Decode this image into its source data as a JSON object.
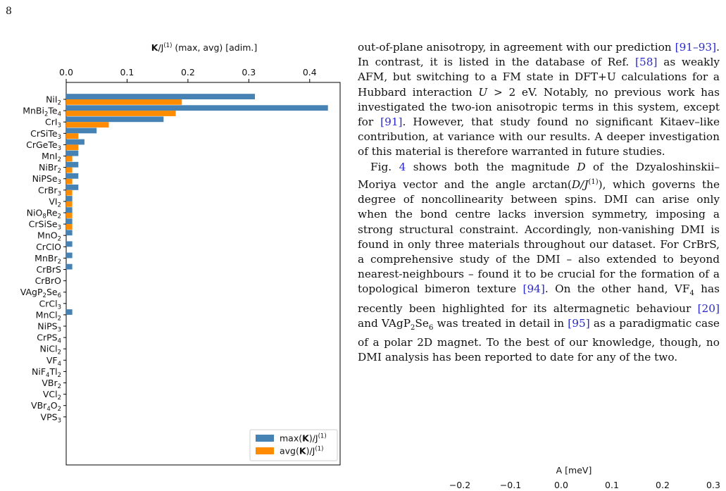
{
  "page": {
    "number": "8"
  },
  "chart_data": {
    "type": "bar",
    "orientation": "horizontal",
    "title": "K/J(1) (max, avg) [adim.]",
    "title_parts": {
      "bold": "K",
      "main": "/J",
      "sup": "(1)",
      "rest": " (max, avg) [adim.]"
    },
    "xlim": [
      0,
      0.45
    ],
    "xticks": [
      {
        "value": 0.0,
        "label": "0.0"
      },
      {
        "value": 0.1,
        "label": "0.1"
      },
      {
        "value": 0.2,
        "label": "0.2"
      },
      {
        "value": 0.3,
        "label": "0.3"
      },
      {
        "value": 0.4,
        "label": "0.4"
      }
    ],
    "grid": false,
    "legend_position": "bottom-right",
    "categories": [
      {
        "label": "NiI2",
        "parts": [
          [
            "NiI",
            ""
          ],
          [
            "2",
            "sub"
          ]
        ]
      },
      {
        "label": "MnBi2Te4",
        "parts": [
          [
            "MnBi",
            ""
          ],
          [
            "2",
            "sub"
          ],
          [
            "Te",
            ""
          ],
          [
            "4",
            "sub"
          ]
        ]
      },
      {
        "label": "CrI3",
        "parts": [
          [
            "CrI",
            ""
          ],
          [
            "3",
            "sub"
          ]
        ]
      },
      {
        "label": "CrSiTe3",
        "parts": [
          [
            "CrSiTe",
            ""
          ],
          [
            "3",
            "sub"
          ]
        ]
      },
      {
        "label": "CrGeTe3",
        "parts": [
          [
            "CrGeTe",
            ""
          ],
          [
            "3",
            "sub"
          ]
        ]
      },
      {
        "label": "MnI2",
        "parts": [
          [
            "MnI",
            ""
          ],
          [
            "2",
            "sub"
          ]
        ]
      },
      {
        "label": "NiBr2",
        "parts": [
          [
            "NiBr",
            ""
          ],
          [
            "2",
            "sub"
          ]
        ]
      },
      {
        "label": "NiPSe3",
        "parts": [
          [
            "NiPSe",
            ""
          ],
          [
            "3",
            "sub"
          ]
        ]
      },
      {
        "label": "CrBr3",
        "parts": [
          [
            "CrBr",
            ""
          ],
          [
            "3",
            "sub"
          ]
        ]
      },
      {
        "label": "VI2",
        "parts": [
          [
            "VI",
            ""
          ],
          [
            "2",
            "sub"
          ]
        ]
      },
      {
        "label": "NiO8Re2",
        "parts": [
          [
            "NiO",
            ""
          ],
          [
            "8",
            "sub"
          ],
          [
            "Re",
            ""
          ],
          [
            "2",
            "sub"
          ]
        ]
      },
      {
        "label": "CrSiSe3",
        "parts": [
          [
            "CrSiSe",
            ""
          ],
          [
            "3",
            "sub"
          ]
        ]
      },
      {
        "label": "MnO2",
        "parts": [
          [
            "MnO",
            ""
          ],
          [
            "2",
            "sub"
          ]
        ]
      },
      {
        "label": "CrClO",
        "parts": [
          [
            "CrClO",
            ""
          ]
        ]
      },
      {
        "label": "MnBr2",
        "parts": [
          [
            "MnBr",
            ""
          ],
          [
            "2",
            "sub"
          ]
        ]
      },
      {
        "label": "CrBrS",
        "parts": [
          [
            "CrBrS",
            ""
          ]
        ]
      },
      {
        "label": "CrBrO",
        "parts": [
          [
            "CrBrO",
            ""
          ]
        ]
      },
      {
        "label": "VAgP2Se6",
        "parts": [
          [
            "VAgP",
            ""
          ],
          [
            "2",
            "sub"
          ],
          [
            "Se",
            ""
          ],
          [
            "6",
            "sub"
          ]
        ]
      },
      {
        "label": "CrCl3",
        "parts": [
          [
            "CrCl",
            ""
          ],
          [
            "3",
            "sub"
          ]
        ]
      },
      {
        "label": "MnCl2",
        "parts": [
          [
            "MnCl",
            ""
          ],
          [
            "2",
            "sub"
          ]
        ]
      },
      {
        "label": "NiPS3",
        "parts": [
          [
            "NiPS",
            ""
          ],
          [
            "3",
            "sub"
          ]
        ]
      },
      {
        "label": "CrPS4",
        "parts": [
          [
            "CrPS",
            ""
          ],
          [
            "4",
            "sub"
          ]
        ]
      },
      {
        "label": "NiCl2",
        "parts": [
          [
            "NiCl",
            ""
          ],
          [
            "2",
            "sub"
          ]
        ]
      },
      {
        "label": "VF4",
        "parts": [
          [
            "VF",
            ""
          ],
          [
            "4",
            "sub"
          ]
        ]
      },
      {
        "label": "NiF4Tl2",
        "parts": [
          [
            "NiF",
            ""
          ],
          [
            "4",
            "sub"
          ],
          [
            "Tl",
            ""
          ],
          [
            "2",
            "sub"
          ]
        ]
      },
      {
        "label": "VBr2",
        "parts": [
          [
            "VBr",
            ""
          ],
          [
            "2",
            "sub"
          ]
        ]
      },
      {
        "label": "VCl2",
        "parts": [
          [
            "VCl",
            ""
          ],
          [
            "2",
            "sub"
          ]
        ]
      },
      {
        "label": "VBr4O2",
        "parts": [
          [
            "VBr",
            ""
          ],
          [
            "4",
            "sub"
          ],
          [
            "O",
            ""
          ],
          [
            "2",
            "sub"
          ]
        ]
      },
      {
        "label": "VPS3",
        "parts": [
          [
            "VPS",
            ""
          ],
          [
            "3",
            "sub"
          ]
        ]
      }
    ],
    "series": [
      {
        "name": "max(K)/J(1)",
        "legend_parts": {
          "pre": "max(",
          "bold": "K",
          "post": ")/J",
          "sup": "(1)"
        },
        "color": "#4682b4",
        "values": [
          0.31,
          0.43,
          0.16,
          0.05,
          0.03,
          0.02,
          0.02,
          0.02,
          0.02,
          0.01,
          0.01,
          0.01,
          0.01,
          0.01,
          0.01,
          0.01,
          0,
          0,
          0,
          0.01,
          0,
          0,
          0,
          0,
          0,
          0,
          0,
          0,
          0
        ]
      },
      {
        "name": "avg(K)/J(1)",
        "legend_parts": {
          "pre": "avg(",
          "bold": "K",
          "post": ")/J",
          "sup": "(1)"
        },
        "color": "#ff8c00",
        "values": [
          0.19,
          0.18,
          0.07,
          0.02,
          0.02,
          0.01,
          0.01,
          0.01,
          0.01,
          0.01,
          0.01,
          0.01,
          0,
          0,
          0,
          0,
          0,
          0,
          0,
          0,
          0,
          0,
          0,
          0,
          0,
          0,
          0,
          0,
          0
        ]
      }
    ]
  },
  "text": {
    "p1": [
      [
        "t",
        "out-of-plane anisotropy, in agreement with our prediction "
      ],
      [
        "c",
        "[91–93]"
      ],
      [
        "t",
        ". In contrast, it is listed in the database of Ref. "
      ],
      [
        "c",
        "[58]"
      ],
      [
        "t",
        " as weakly AFM, but switching to a FM state in DFT+U calculations for a Hubbard interaction "
      ],
      [
        "m",
        "U"
      ],
      [
        "t",
        " > 2 eV. Notably, no previous work has investigated the two-ion anisotropic terms in this system, except for "
      ],
      [
        "c",
        "[91]"
      ],
      [
        "t",
        ". However, that study found no significant Kitaev–like contribution, at variance with our results. A deeper investigation of this material is therefore warranted in future studies."
      ]
    ],
    "p2": [
      [
        "t",
        "Fig. "
      ],
      [
        "c",
        "4"
      ],
      [
        "t",
        " shows both the magnitude "
      ],
      [
        "m",
        "D"
      ],
      [
        "t",
        " of the Dzyaloshinskii–Moriya vector and the angle arctan("
      ],
      [
        "m",
        "D/J"
      ],
      [
        "s",
        "(1)"
      ],
      [
        "t",
        "), which governs the degree of noncollinearity between spins. DMI can arise only when the bond centre lacks inversion symmetry, imposing a strong structural constraint. Accordingly, non-vanishing DMI is found in only three materials throughout our dataset. For CrBrS, a comprehensive study of the DMI – also extended to beyond nearest-neighbours – found it to be crucial for the formation of a topological bimeron texture "
      ],
      [
        "c",
        "[94]"
      ],
      [
        "t",
        ". On the other hand, VF"
      ],
      [
        "b",
        "4"
      ],
      [
        "t",
        " has recently been highlighted for its altermagnetic behaviour "
      ],
      [
        "c",
        "[20]"
      ],
      [
        "t",
        " and VAgP"
      ],
      [
        "b",
        "2"
      ],
      [
        "t",
        "Se"
      ],
      [
        "b",
        "6"
      ],
      [
        "t",
        " was treated in detail in "
      ],
      [
        "c",
        "[95]"
      ],
      [
        "t",
        " as a paradigmatic case of a polar 2D magnet. To the best of our knowledge, though, no DMI analysis has been reported to date for any of the two."
      ]
    ]
  },
  "figure2": {
    "title": "A [meV]",
    "xticks": [
      {
        "value": -0.2,
        "label": "−0.2"
      },
      {
        "value": -0.1,
        "label": "−0.1"
      },
      {
        "value": 0.0,
        "label": "0.0"
      },
      {
        "value": 0.1,
        "label": "0.1"
      },
      {
        "value": 0.2,
        "label": "0.2"
      },
      {
        "value": 0.3,
        "label": "0.3"
      }
    ]
  }
}
